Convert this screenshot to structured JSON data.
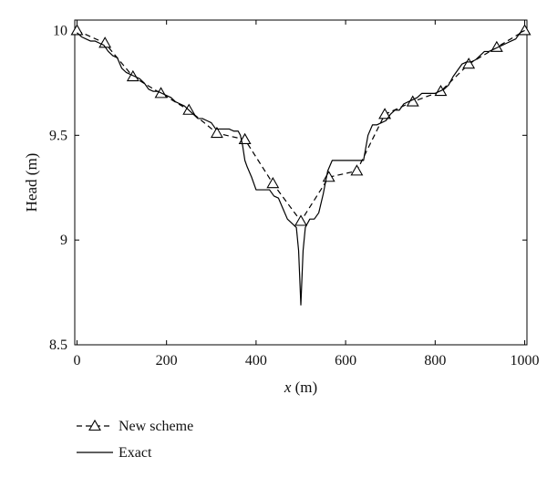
{
  "chart_data": {
    "type": "line",
    "xlabel_var": "x",
    "xlabel_unit": " (m)",
    "ylabel": "Head (m)",
    "xlim": [
      -5,
      1005
    ],
    "ylim": [
      8.5,
      10.05
    ],
    "xticks": [
      0,
      200,
      400,
      600,
      800,
      1000
    ],
    "xtick_labels": [
      "0",
      "200",
      "400",
      "600",
      "800",
      "1000"
    ],
    "yticks": [
      8.5,
      9,
      9.5,
      10
    ],
    "ytick_labels": [
      "8.5",
      "9",
      "9.5",
      "10"
    ],
    "grid": false,
    "legend_position": "bottom-left, below plot",
    "series": [
      {
        "name": "New scheme",
        "style": "dashed",
        "marker": "triangle",
        "color": "#000000",
        "x": [
          0,
          62.5,
          125,
          187.5,
          250,
          312.5,
          375,
          437.5,
          500,
          562.5,
          625,
          687.5,
          750,
          812.5,
          875,
          937.5,
          1000
        ],
        "y": [
          10.0,
          9.94,
          9.78,
          9.7,
          9.62,
          9.51,
          9.48,
          9.27,
          9.09,
          9.3,
          9.33,
          9.6,
          9.66,
          9.71,
          9.84,
          9.92,
          10.0
        ]
      },
      {
        "name": "Exact",
        "style": "solid",
        "marker": "none",
        "color": "#000000",
        "x": [
          0,
          10,
          20,
          30,
          40,
          50,
          60,
          70,
          80,
          90,
          100,
          110,
          120,
          130,
          140,
          150,
          160,
          170,
          180,
          190,
          200,
          210,
          220,
          230,
          240,
          250,
          260,
          270,
          280,
          290,
          300,
          310,
          320,
          330,
          340,
          350,
          360,
          365,
          370,
          375,
          380,
          390,
          400,
          410,
          420,
          430,
          440,
          450,
          460,
          470,
          480,
          490,
          495,
          500,
          505,
          510,
          520,
          530,
          540,
          550,
          560,
          570,
          580,
          590,
          600,
          610,
          620,
          630,
          640,
          650,
          660,
          670,
          680,
          690,
          700,
          710,
          720,
          730,
          740,
          750,
          760,
          770,
          780,
          790,
          800,
          810,
          820,
          830,
          840,
          850,
          860,
          870,
          880,
          890,
          900,
          910,
          920,
          930,
          940,
          950,
          960,
          970,
          980,
          990,
          1000
        ],
        "y": [
          9.99,
          9.97,
          9.96,
          9.95,
          9.95,
          9.94,
          9.93,
          9.9,
          9.88,
          9.87,
          9.82,
          9.8,
          9.79,
          9.78,
          9.77,
          9.75,
          9.72,
          9.71,
          9.71,
          9.7,
          9.69,
          9.68,
          9.66,
          9.65,
          9.64,
          9.62,
          9.6,
          9.58,
          9.58,
          9.57,
          9.56,
          9.53,
          9.53,
          9.53,
          9.53,
          9.52,
          9.52,
          9.5,
          9.45,
          9.38,
          9.35,
          9.3,
          9.24,
          9.24,
          9.24,
          9.24,
          9.21,
          9.2,
          9.15,
          9.1,
          9.08,
          9.06,
          8.95,
          8.69,
          8.95,
          9.06,
          9.1,
          9.1,
          9.13,
          9.22,
          9.33,
          9.38,
          9.38,
          9.38,
          9.38,
          9.38,
          9.38,
          9.38,
          9.38,
          9.5,
          9.55,
          9.55,
          9.56,
          9.57,
          9.6,
          9.62,
          9.62,
          9.65,
          9.66,
          9.67,
          9.68,
          9.7,
          9.7,
          9.7,
          9.7,
          9.71,
          9.72,
          9.74,
          9.78,
          9.81,
          9.84,
          9.85,
          9.85,
          9.86,
          9.88,
          9.9,
          9.9,
          9.91,
          9.92,
          9.93,
          9.94,
          9.95,
          9.96,
          9.99,
          10.0
        ]
      }
    ]
  }
}
